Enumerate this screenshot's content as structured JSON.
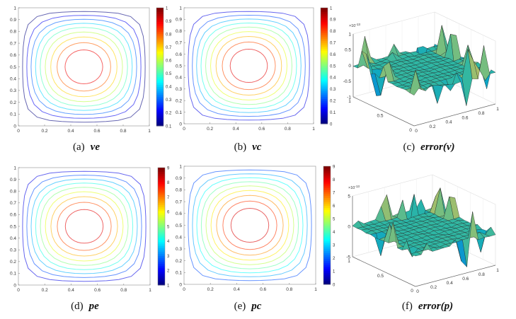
{
  "chart_data": [
    {
      "id": "a",
      "type": "contour",
      "caption_label": "(a)",
      "caption_var": "ve",
      "x_ticks": [
        "0",
        "0.2",
        "0.4",
        "0.6",
        "0.8",
        "1"
      ],
      "y_ticks": [
        "0",
        "0.1",
        "0.2",
        "0.3",
        "0.4",
        "0.5",
        "0.6",
        "0.7",
        "0.8",
        "0.9",
        "1"
      ],
      "xlim": [
        0,
        1
      ],
      "ylim": [
        0,
        1
      ],
      "colorbar": {
        "range": [
          0.1,
          1
        ],
        "ticks": [
          "0.1",
          "0.2",
          "0.3",
          "0.4",
          "0.5",
          "0.6",
          "0.7",
          "0.8",
          "0.9",
          "1"
        ],
        "colormap": "jet"
      },
      "levels": [
        0.1,
        0.2,
        0.3,
        0.4,
        0.5,
        0.6,
        0.7,
        0.8,
        0.9
      ],
      "level_range": [
        0,
        1
      ]
    },
    {
      "id": "b",
      "type": "contour",
      "caption_label": "(b)",
      "caption_var": "vc",
      "x_ticks": [
        "0",
        "0.2",
        "0.4",
        "0.6",
        "0.8",
        "1"
      ],
      "y_ticks": [
        "0",
        "0.1",
        "0.2",
        "0.3",
        "0.4",
        "0.5",
        "0.6",
        "0.7",
        "0.8",
        "0.9",
        "1"
      ],
      "xlim": [
        0,
        1
      ],
      "ylim": [
        0,
        1
      ],
      "colorbar": {
        "range": [
          0,
          1
        ],
        "ticks": [
          "0",
          "0.1",
          "0.2",
          "0.3",
          "0.4",
          "0.5",
          "0.6",
          "0.7",
          "0.8",
          "0.9",
          "1"
        ],
        "colormap": "jet"
      },
      "levels": [
        0.1,
        0.2,
        0.3,
        0.4,
        0.5,
        0.6,
        0.7,
        0.8,
        0.9
      ],
      "level_range": [
        0,
        1
      ]
    },
    {
      "id": "c",
      "type": "surface",
      "caption_label": "(c)",
      "caption_var": "error(v)",
      "x_ticks": [
        "0",
        "0.2",
        "0.4",
        "0.6",
        "0.8",
        "1"
      ],
      "y_ticks": [
        "0",
        "0.5",
        "1"
      ],
      "z_ticks": [
        "-1",
        "-0.5",
        "0",
        "0.5",
        "1"
      ],
      "z_exponent": "×10",
      "z_exponent_power": "-13",
      "zlim": [
        -1,
        1
      ],
      "colormap": "parula"
    },
    {
      "id": "d",
      "type": "contour",
      "caption_label": "(d)",
      "caption_var": "pe",
      "x_ticks": [
        "0",
        "0.2",
        "0.4",
        "0.6",
        "0.8",
        "1"
      ],
      "y_ticks": [
        "0",
        "0.1",
        "0.2",
        "0.3",
        "0.4",
        "0.5",
        "0.6",
        "0.7",
        "0.8",
        "0.9",
        "1"
      ],
      "xlim": [
        0,
        1
      ],
      "ylim": [
        0,
        1
      ],
      "colorbar": {
        "range": [
          1,
          9
        ],
        "ticks": [
          "1",
          "2",
          "3",
          "4",
          "5",
          "6",
          "7",
          "8",
          "9"
        ],
        "colormap": "jet"
      },
      "levels": [
        1.8,
        2.6,
        3.4,
        4.2,
        5,
        5.8,
        6.6,
        7.4,
        8.2
      ],
      "level_range": [
        1,
        9
      ]
    },
    {
      "id": "e",
      "type": "contour",
      "caption_label": "(e)",
      "caption_var": "pc",
      "x_ticks": [
        "0",
        "0.2",
        "0.4",
        "0.6",
        "0.8",
        "1"
      ],
      "y_ticks": [
        "0",
        "0.1",
        "0.2",
        "0.3",
        "0.4",
        "0.5",
        "0.6",
        "0.7",
        "0.8",
        "0.9",
        "1"
      ],
      "xlim": [
        0,
        1
      ],
      "ylim": [
        0,
        1
      ],
      "colorbar": {
        "range": [
          0,
          9
        ],
        "ticks": [
          "0",
          "1",
          "2",
          "3",
          "4",
          "5",
          "6",
          "7",
          "8",
          "9"
        ],
        "colormap": "jet"
      },
      "levels": [
        1.8,
        2.6,
        3.4,
        4.2,
        5,
        5.8,
        6.6,
        7.4,
        8.2
      ],
      "level_range": [
        1,
        9
      ]
    },
    {
      "id": "f",
      "type": "surface",
      "caption_label": "(f)",
      "caption_var": "error(p)",
      "x_ticks": [
        "0",
        "0.2",
        "0.4",
        "0.6",
        "0.8",
        "1"
      ],
      "y_ticks": [
        "0",
        "0.5",
        "1"
      ],
      "z_ticks": [
        "-5",
        "0",
        "5"
      ],
      "z_exponent": "×10",
      "z_exponent_power": "-13",
      "zlim": [
        -5,
        5
      ],
      "colormap": "parula"
    }
  ]
}
